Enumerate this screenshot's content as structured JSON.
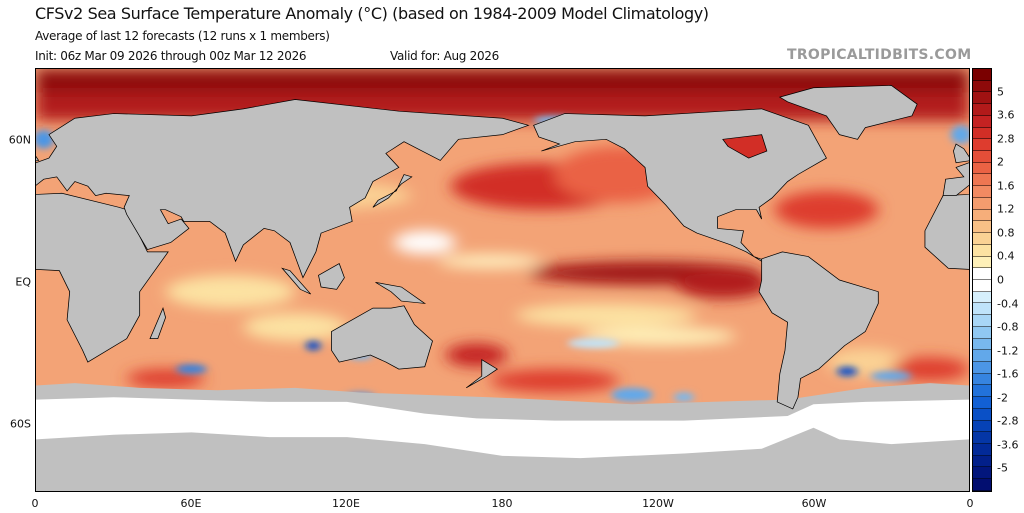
{
  "header": {
    "title": "CFSv2 Sea Surface Temperature Anomaly (°C) (based on 1984-2009 Model Climatology)",
    "subtitle": "Average of last 12 forecasts (12 runs x 1 members)",
    "init": "Init: 06z Mar 09 2026 through 00z Mar 12 2026",
    "valid": "Valid for: Aug 2026",
    "watermark": "TROPICALTIDBITS.COM"
  },
  "axes": {
    "lat_labels": [
      "60N",
      "EQ",
      "60S"
    ],
    "lon_labels": [
      "0",
      "60E",
      "120E",
      "180",
      "120W",
      "60W",
      "0"
    ]
  },
  "colorbar": {
    "unit": "°C",
    "labels": [
      "5",
      "3.6",
      "2.8",
      "2",
      "1.6",
      "1.2",
      "0.8",
      "0.4",
      "0",
      "-0.4",
      "-0.8",
      "-1.2",
      "-1.6",
      "-2",
      "-2.8",
      "-3.6",
      "-5"
    ],
    "bands": [
      "#7a0000",
      "#8e0a0a",
      "#a01212",
      "#b21a1a",
      "#c42222",
      "#d22e26",
      "#de3c2e",
      "#e44e38",
      "#ea6244",
      "#ee7652",
      "#f28a62",
      "#f49c6e",
      "#f6ae7a",
      "#f8c086",
      "#fad294",
      "#fce2a2",
      "#fef0b8",
      "#ffffff",
      "#ffffff",
      "#d6effc",
      "#bfe3fa",
      "#a8d6f6",
      "#90c8f2",
      "#78b8ee",
      "#62a8ea",
      "#4c96e6",
      "#3684e0",
      "#2272da",
      "#1260d4",
      "#0a50c6",
      "#0642b6",
      "#0436a6",
      "#022a98",
      "#02208a",
      "#02167c",
      "#020e70"
    ],
    "land_color": "#c0c0c0"
  }
}
